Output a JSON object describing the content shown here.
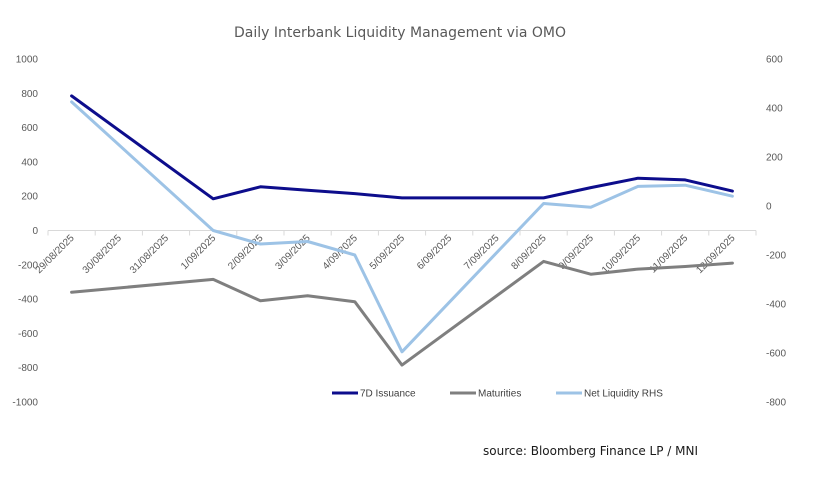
{
  "chart_data": {
    "type": "line",
    "title": "Daily Interbank Liquidity Management via OMO",
    "xlabel": "",
    "ylabel": "",
    "categories": [
      "29/08/2025",
      "30/08/2025",
      "31/08/2025",
      "1/09/2025",
      "2/09/2025",
      "3/09/2025",
      "4/09/2025",
      "5/09/2025",
      "6/09/2025",
      "7/09/2025",
      "8/09/2025",
      "9/09/2025",
      "10/09/2025",
      "11/09/2025",
      "12/09/2025"
    ],
    "ylim": [
      -1000,
      1000
    ],
    "y_ticks": [
      1000,
      800,
      600,
      400,
      200,
      0,
      -200,
      -400,
      -600,
      -800,
      -1000
    ],
    "y2lim": [
      -800,
      600
    ],
    "y2_ticks": [
      600,
      400,
      200,
      0,
      -200,
      -400,
      -600,
      -800
    ],
    "grid": false,
    "legend_position": "bottom",
    "series": [
      {
        "name": "7D Issuance",
        "axis": "left",
        "color": "#0D0D8C",
        "values": [
          785,
          null,
          null,
          185,
          255,
          235,
          215,
          190,
          null,
          null,
          190,
          250,
          305,
          295,
          230
        ]
      },
      {
        "name": "Maturities",
        "axis": "left",
        "color": "#7F7F7F",
        "values": [
          -360,
          null,
          null,
          -285,
          -410,
          -380,
          -415,
          -785,
          null,
          null,
          -180,
          -255,
          -225,
          -210,
          -190
        ]
      },
      {
        "name": "Net Liquidity RHS",
        "axis": "right",
        "color": "#9DC3E6",
        "values": [
          425,
          null,
          null,
          -100,
          -155,
          -145,
          -200,
          -595,
          null,
          null,
          10,
          -5,
          80,
          85,
          40
        ]
      }
    ]
  },
  "source": "source: Bloomberg Finance LP / MNI"
}
